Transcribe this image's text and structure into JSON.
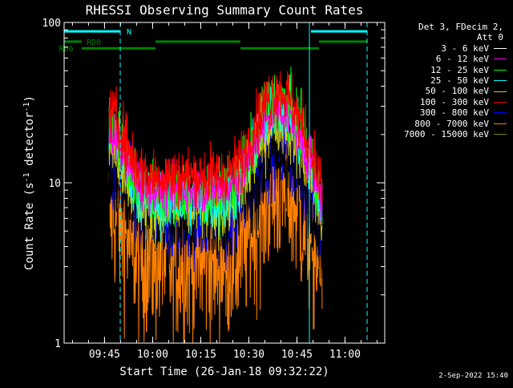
{
  "chart_data": {
    "type": "line",
    "title": "RHESSI Observing Summary Count Rates",
    "xlabel": "Start Time (26-Jan-18 09:32:22)",
    "ylabel": "Count Rate (s",
    "ylabel_sup": "-1",
    "ylabel_tail": " detector",
    "ylabel_sup2": "-1",
    "ylabel_close": ")",
    "y_scale": "log",
    "ylim": [
      1,
      100
    ],
    "xlim_minutes": [
      0,
      100
    ],
    "x_tick_labels": [
      "09:45",
      "10:00",
      "10:15",
      "10:30",
      "10:45",
      "11:00"
    ],
    "x_tick_minutes": [
      12.6,
      27.6,
      42.6,
      57.6,
      72.6,
      87.6
    ],
    "y_tick_labels": [
      "1",
      "10",
      "100"
    ],
    "y_tick_values": [
      1,
      10,
      100
    ],
    "data_start_minute": 14,
    "data_end_minute": 80.5,
    "series": [
      {
        "name": "3 - 6 keV",
        "color": "#000000",
        "min_level": 6.5,
        "peak_level": 15,
        "noise": 0.12
      },
      {
        "name": "6 - 12 keV",
        "color": "#ff00ff",
        "min_level": 9,
        "peak_level": 28,
        "noise": 0.06
      },
      {
        "name": "12 - 25 keV",
        "color": "#00ff00",
        "min_level": 8.5,
        "peak_level": 33,
        "noise": 0.08
      },
      {
        "name": "25 - 50 keV",
        "color": "#00ffff",
        "min_level": 7.5,
        "peak_level": 30,
        "noise": 0.08
      },
      {
        "name": "50 - 100 keV",
        "color": "#cccc00",
        "min_level": 7,
        "peak_level": 25,
        "noise": 0.09
      },
      {
        "name": "100 - 300 keV",
        "color": "#ff0000",
        "min_level": 11,
        "peak_level": 37,
        "noise": 0.08
      },
      {
        "name": "300 - 800 keV",
        "color": "#0000ff",
        "min_level": 6,
        "peak_level": 18,
        "noise": 0.12
      },
      {
        "name": "800 - 7000 keV",
        "color": "#ff8000",
        "min_level": 3.2,
        "peak_level": 9,
        "noise": 0.25
      },
      {
        "name": "7000 - 15000 keV",
        "color": "#808000",
        "min_level": 0,
        "peak_level": 0,
        "noise": 0
      }
    ],
    "annotations": [
      {
        "label": "N",
        "color": "#00ffff",
        "segments_minutes": [
          [
            0,
            17.5
          ],
          [
            77,
            94.5
          ]
        ],
        "level": 88
      },
      {
        "label": "RD0",
        "color": "#008000",
        "segments_minutes": [
          [
            0,
            5.5
          ],
          [
            28.5,
            55
          ],
          [
            79.5,
            94.5
          ]
        ],
        "level": 76
      },
      {
        "label": "RD6",
        "color": "#008000",
        "segments_minutes": [
          [
            5.5,
            28.5
          ],
          [
            55,
            79.5
          ]
        ],
        "level": 69
      }
    ],
    "vertical_markers": [
      {
        "minute": 17.5,
        "style": "dashed",
        "color": "#00ffff"
      },
      {
        "minute": 76.5,
        "style": "solid",
        "color": "#00ffff"
      },
      {
        "minute": 94.5,
        "style": "dashed",
        "color": "#00ffff"
      }
    ]
  },
  "legend": {
    "header_line1": "Det 3, FDecim 2,",
    "header_line2": "Att 0"
  },
  "timestamp": "2-Sep-2022 15:40"
}
